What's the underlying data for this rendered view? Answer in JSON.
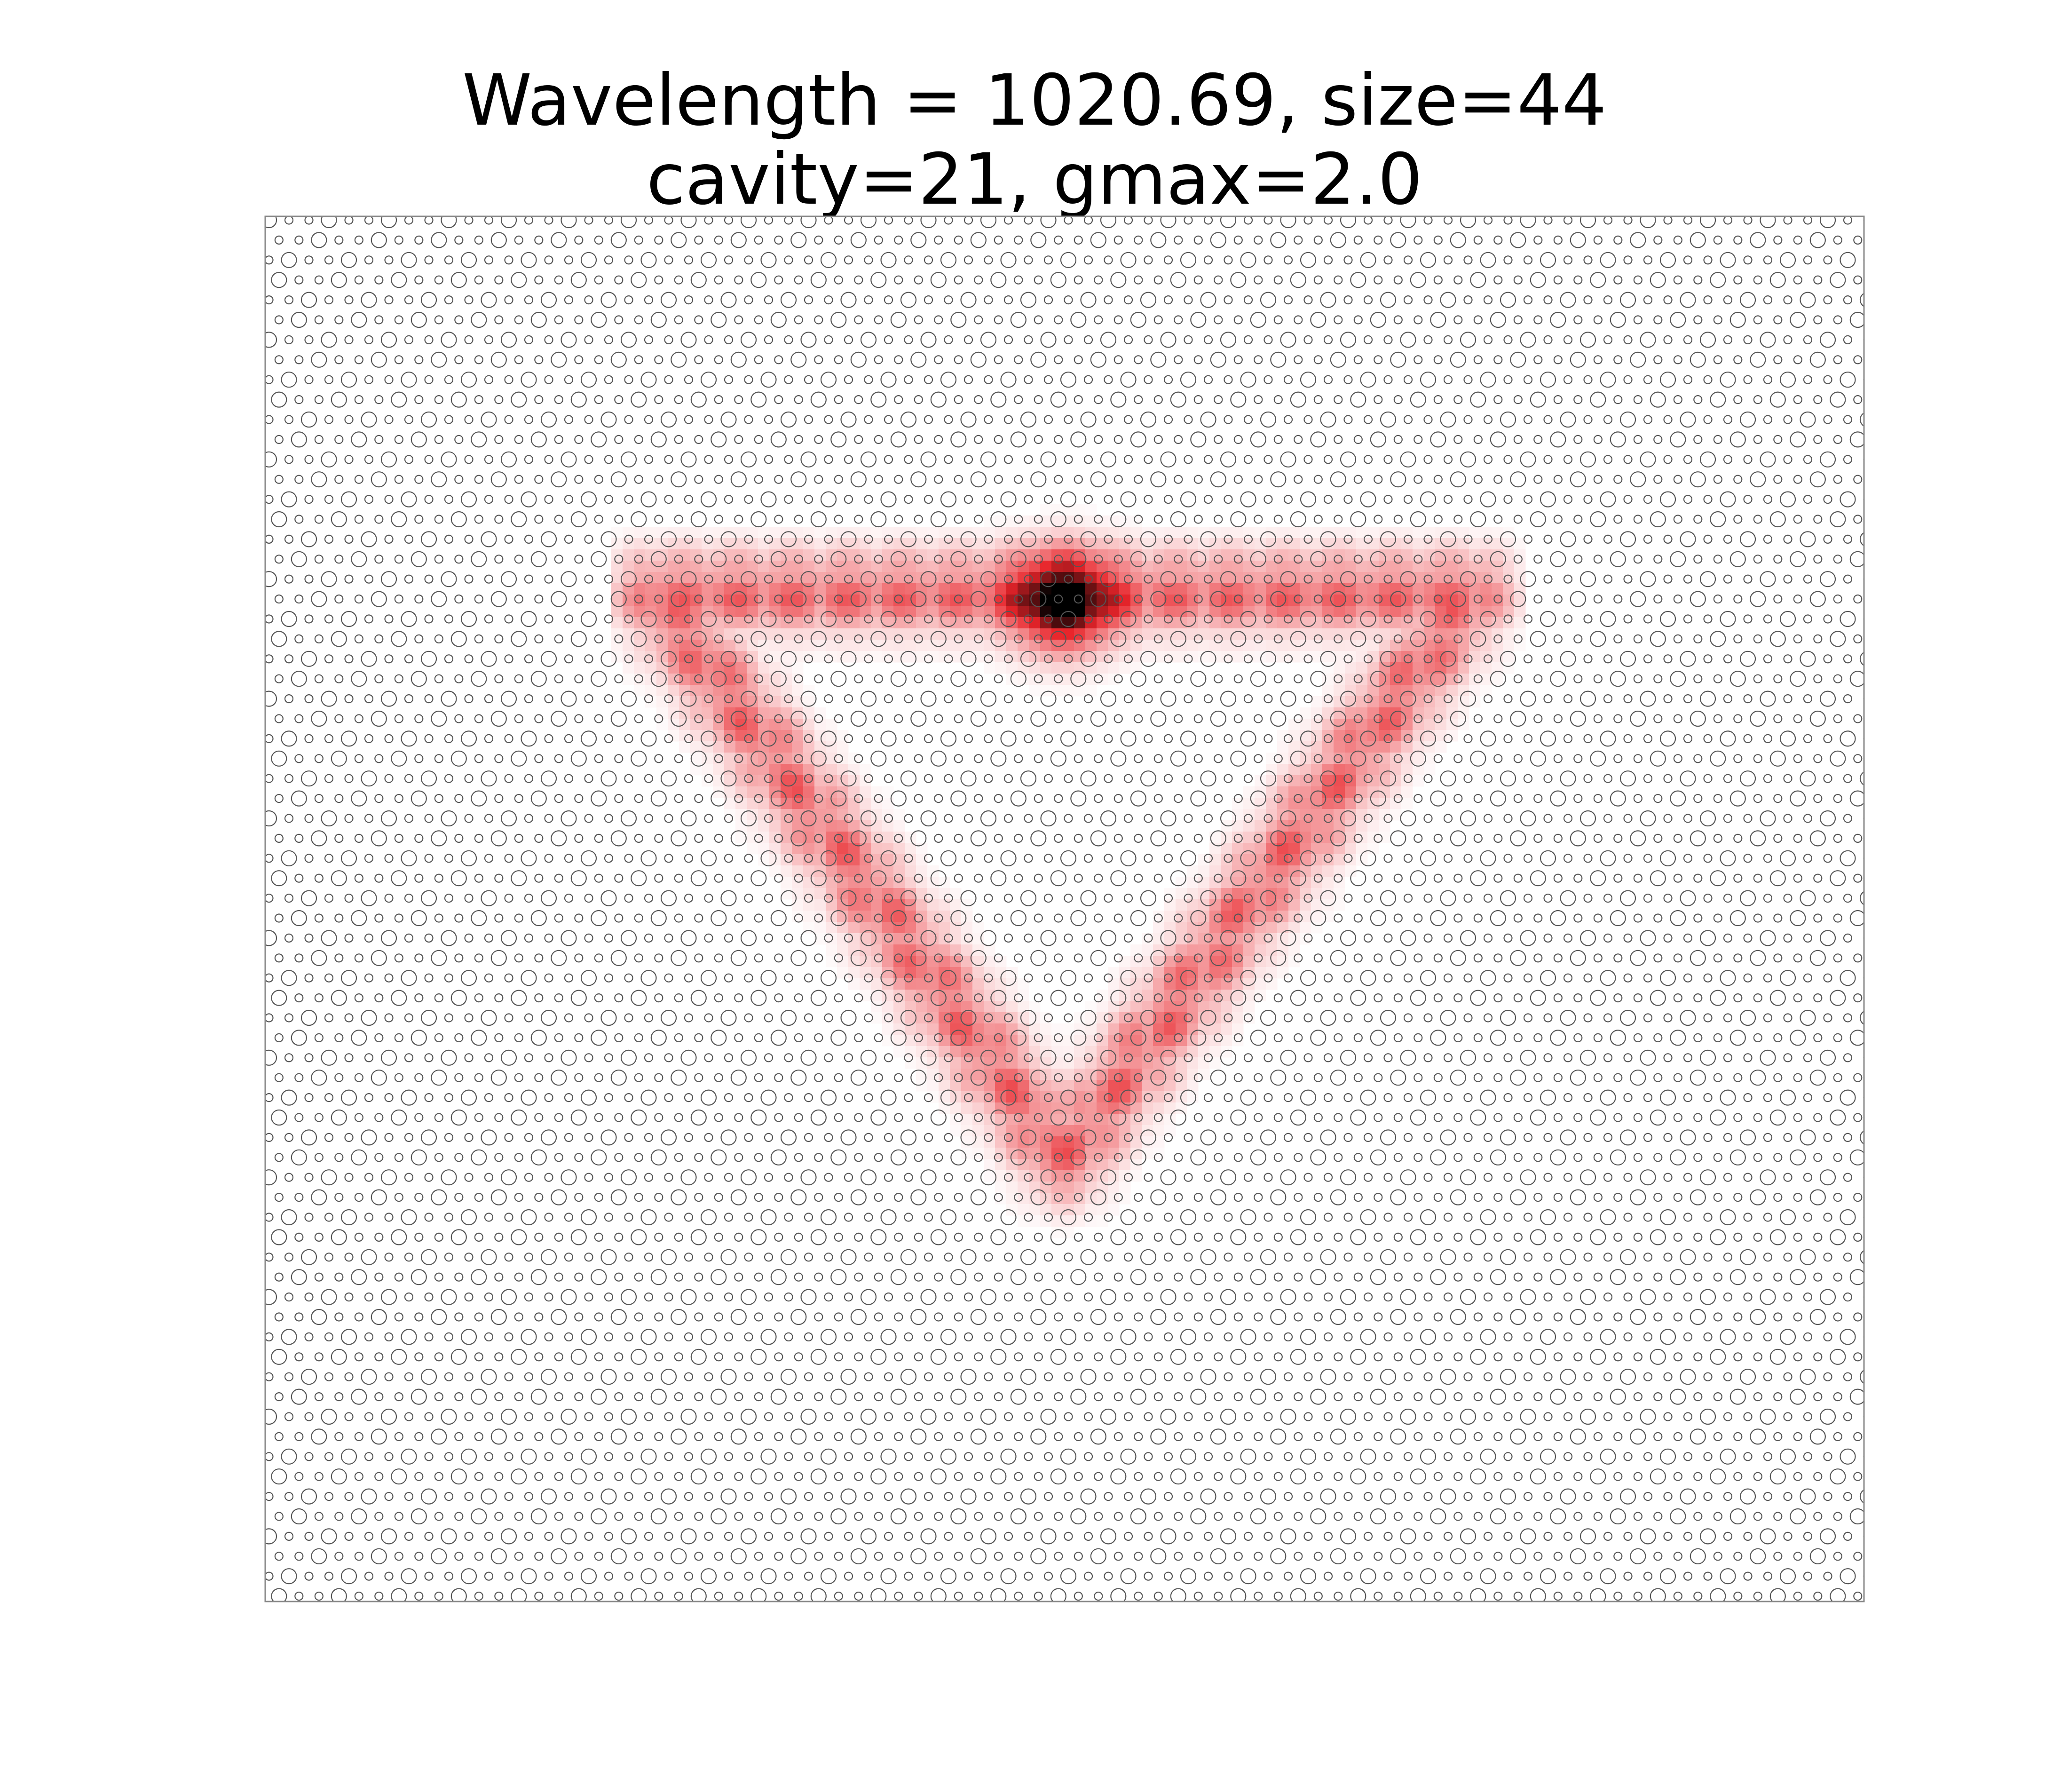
{
  "figure": {
    "title_line1": "Wavelength = 1020.69, size=44",
    "title_line2": "cavity=21, gmax=2.0"
  },
  "chart_data": {
    "type": "heatmap",
    "title": "Wavelength = 1020.69, size=44\ncavity=21, gmax=2.0",
    "xlabel": "",
    "ylabel": "",
    "axes_visible": false,
    "grid": false,
    "colormap": "white-red-black",
    "color_max": 2.0,
    "lattice": "honeycomb-like hole array (large and small circles)",
    "field_pattern": "inverted triangle ring with peak near the top edge center",
    "colors": {
      "hole_outline": "#555555",
      "frame": "#888888",
      "field_low": "#ffffff",
      "field_mid": "#e8242a",
      "field_high": "#000000"
    }
  }
}
